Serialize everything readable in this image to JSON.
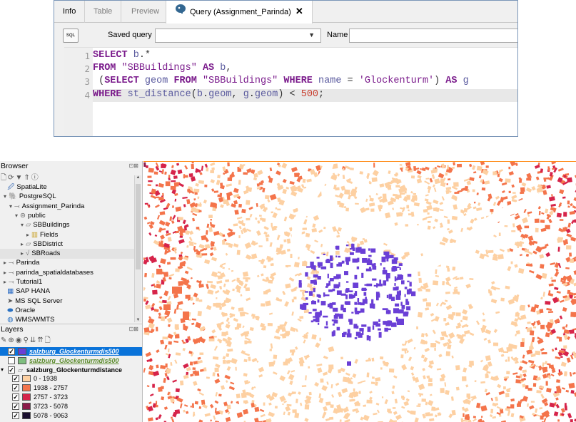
{
  "query_window": {
    "tabs": [
      {
        "label": "Info",
        "active": false
      },
      {
        "label": "Table",
        "active": false
      },
      {
        "label": "Preview",
        "active": false
      },
      {
        "label": "Query (Assignment_Parinda)",
        "active": true
      }
    ],
    "sql_button": "SQL",
    "saved_query_label": "Saved query",
    "saved_query_value": "",
    "name_label": "Name",
    "name_value": "",
    "sql_lines": [
      {
        "n": "1",
        "text": "SELECT b.*"
      },
      {
        "n": "2",
        "text": "FROM \"SBBuildings\" AS b,"
      },
      {
        "n": "3",
        "text": " (SELECT geom FROM \"SBBuildings\" WHERE name = 'Glockenturm') AS g"
      },
      {
        "n": "4",
        "text": "WHERE st_distance(b.geom, g.geom) < 500;"
      }
    ]
  },
  "browser": {
    "title": "Browser",
    "items": [
      {
        "label": "SpatiaLite",
        "icon": "feather-icon"
      },
      {
        "label": "PostgreSQL",
        "icon": "elephant-icon"
      },
      {
        "label": "Assignment_Parinda",
        "icon": "connection-icon"
      },
      {
        "label": "public",
        "icon": "schema-icon"
      },
      {
        "label": "SBBuildings",
        "icon": "polygon-table-icon"
      },
      {
        "label": "Fields",
        "icon": "fields-icon"
      },
      {
        "label": "SBDistrict",
        "icon": "polygon-table-icon"
      },
      {
        "label": "SBRoads",
        "icon": "line-table-icon"
      },
      {
        "label": "Parinda",
        "icon": "connection-icon"
      },
      {
        "label": "parinda_spatialdatabases",
        "icon": "connection-icon"
      },
      {
        "label": "Tutorial1",
        "icon": "connection-icon"
      },
      {
        "label": "SAP HANA",
        "icon": "sap-icon"
      },
      {
        "label": "MS SQL Server",
        "icon": "mssql-icon"
      },
      {
        "label": "Oracle",
        "icon": "oracle-icon"
      },
      {
        "label": "WMS/WMTS",
        "icon": "globe-icon"
      }
    ]
  },
  "layers": {
    "title": "Layers",
    "items": [
      {
        "label": "salzburg_Glockenturmdis500",
        "checked": true,
        "color": "#6a3fd6",
        "selected": true
      },
      {
        "label": "salzburg_Glockenturmdis500",
        "checked": false,
        "color": "#7fbf7f",
        "selected": false
      },
      {
        "label": "salzburg_Glockenturmdistance",
        "checked": true,
        "color": "",
        "selected": false
      },
      {
        "label": "0 - 1938",
        "checked": true,
        "color": "#fdd0a2",
        "selected": false
      },
      {
        "label": "1938 - 2757",
        "checked": true,
        "color": "#f4744b",
        "selected": false
      },
      {
        "label": "2757 - 3723",
        "checked": true,
        "color": "#d6244a",
        "selected": false
      },
      {
        "label": "3723 - 5078",
        "checked": true,
        "color": "#8c1a4a",
        "selected": false
      },
      {
        "label": "5078 - 9063",
        "checked": true,
        "color": "#1a0e2e",
        "selected": false
      }
    ]
  },
  "map_colors": {
    "near": "#fdd0a2",
    "mid": "#f4744b",
    "far": "#d6244a",
    "farther": "#8c1a4a",
    "selection": "#6a3fd6"
  }
}
